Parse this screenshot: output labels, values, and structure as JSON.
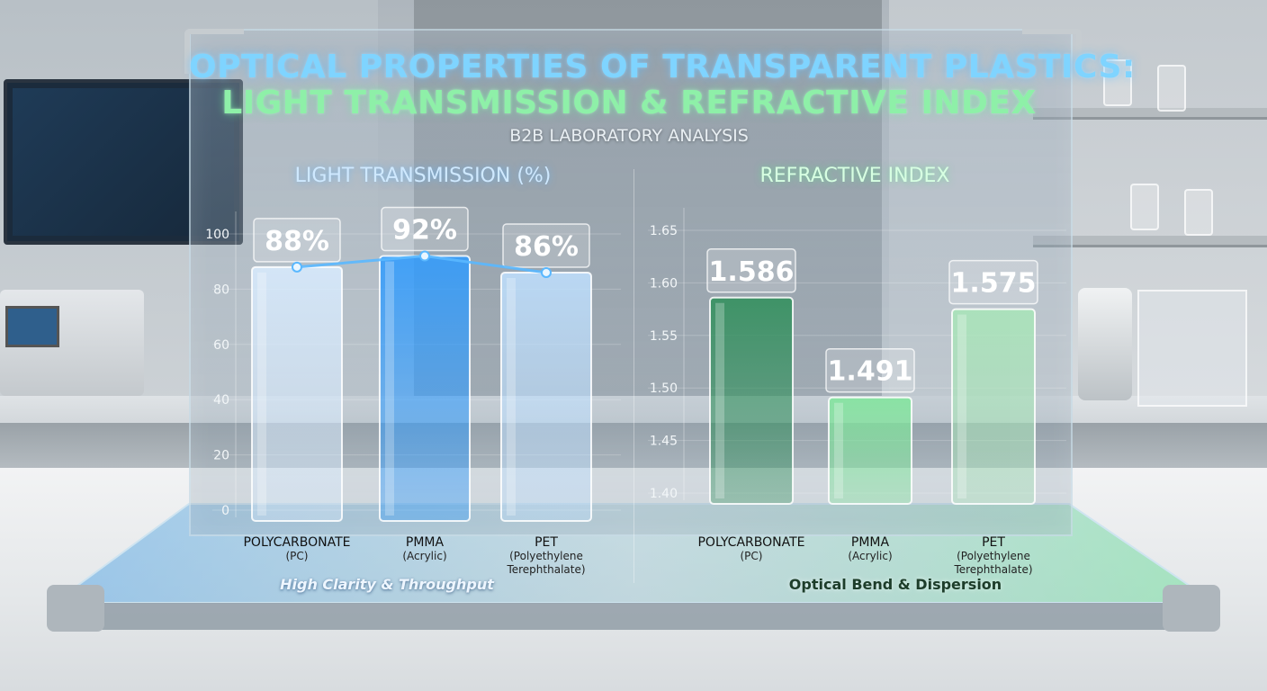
{
  "title_line1": "OPTICAL PROPERTIES OF TRANSPARENT PLASTICS:",
  "title_line2": "LIGHT TRANSMISSION & REFRACTIVE INDEX",
  "subtitle": "B2B LABORATORY ANALYSIS",
  "chart_data": [
    {
      "type": "bar",
      "title": "LIGHT TRANSMISSION (%)",
      "categories": [
        {
          "line1": "POLYCARBONATE",
          "line2": "(PC)",
          "line3": ""
        },
        {
          "line1": "PMMA",
          "line2": "(Acrylic)",
          "line3": ""
        },
        {
          "line1": "PET",
          "line2": "(Polyethylene",
          "line3": "Terephthalate)"
        }
      ],
      "values": [
        88,
        92,
        86
      ],
      "data_labels": [
        "88%",
        "92%",
        "86%"
      ],
      "yticks": [
        "0",
        "20",
        "40",
        "60",
        "80",
        "100"
      ],
      "ylim": [
        0,
        100
      ],
      "overlay_line": true,
      "caption": "High Clarity & Throughput",
      "colors": [
        "#d9ecff",
        "#2e9bff",
        "#bfe0ff"
      ],
      "accent": "#5ab8ff",
      "grid": true
    },
    {
      "type": "bar",
      "title": "REFRACTIVE INDEX",
      "categories": [
        {
          "line1": "POLYCARBONATE",
          "line2": "(PC)",
          "line3": ""
        },
        {
          "line1": "PMMA",
          "line2": "(Acrylic)",
          "line3": ""
        },
        {
          "line1": "PET",
          "line2": "(Polyethylene",
          "line3": "Terephthalate)"
        }
      ],
      "values": [
        1.586,
        1.491,
        1.575
      ],
      "data_labels": [
        "1.586",
        "1.491",
        "1.575"
      ],
      "yticks": [
        "1.40",
        "1.45",
        "1.50",
        "1.55",
        "1.60",
        "1.65"
      ],
      "ylim": [
        1.4,
        1.65
      ],
      "caption": "Optical Bend & Dispersion",
      "colors": [
        "#2e8f5a",
        "#7fe69b",
        "#a8e6b8"
      ],
      "accent": "#6fe29a",
      "grid": true
    }
  ]
}
